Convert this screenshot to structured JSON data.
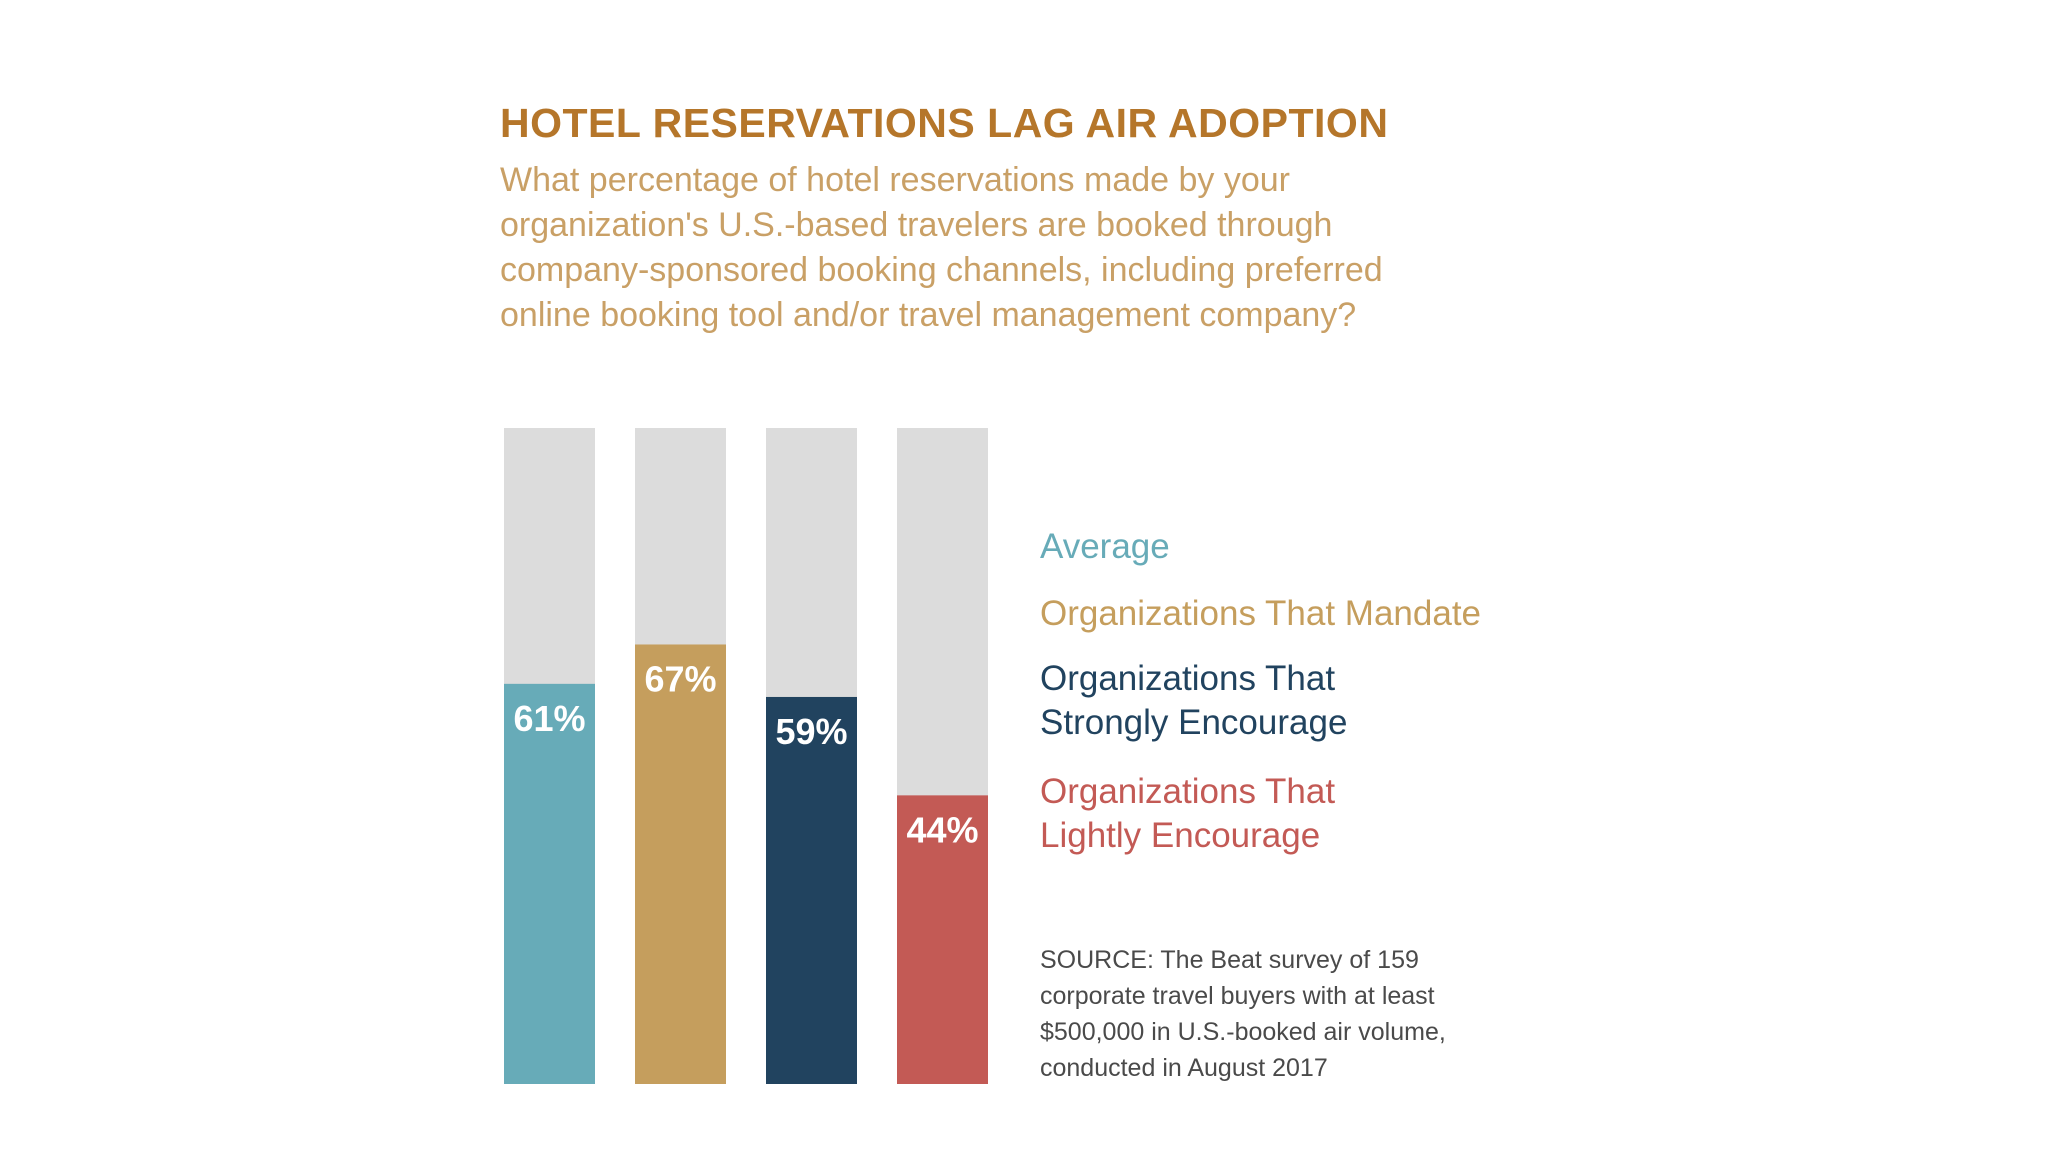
{
  "chart_data": {
    "type": "bar",
    "title": "HOTEL RESERVATIONS LAG AIR ADOPTION",
    "subtitle_lines": [
      "What percentage of hotel reservations made by your",
      "organization's U.S.-based travelers are booked through",
      "company-sponsored booking channels, including preferred",
      "online booking tool and/or travel management company?"
    ],
    "categories": [
      "Average",
      "Organizations That Mandate",
      "Organizations That Strongly Encourage",
      "Organizations That Lightly Encourage"
    ],
    "values": [
      61,
      67,
      59,
      44
    ],
    "value_labels": [
      "61%",
      "67%",
      "59%",
      "44%"
    ],
    "ylim": [
      0,
      100
    ],
    "background_color": "#dcdcdc",
    "colors": [
      "#67abb8",
      "#c59e5d",
      "#21435f",
      "#c35a55"
    ],
    "legend_position": "right",
    "legend": [
      {
        "lines": [
          "Average"
        ],
        "color": "#67abb8"
      },
      {
        "lines": [
          "Organizations That Mandate"
        ],
        "color": "#c59e5d"
      },
      {
        "lines": [
          "Organizations That",
          "Strongly Encourage"
        ],
        "color": "#21435f"
      },
      {
        "lines": [
          "Organizations That",
          "Lightly Encourage"
        ],
        "color": "#c35a55"
      }
    ],
    "source_lines": [
      "SOURCE: The Beat survey of 159",
      "corporate travel buyers with at least",
      "$500,000 in U.S.-booked air volume,",
      "conducted in August 2017"
    ]
  }
}
